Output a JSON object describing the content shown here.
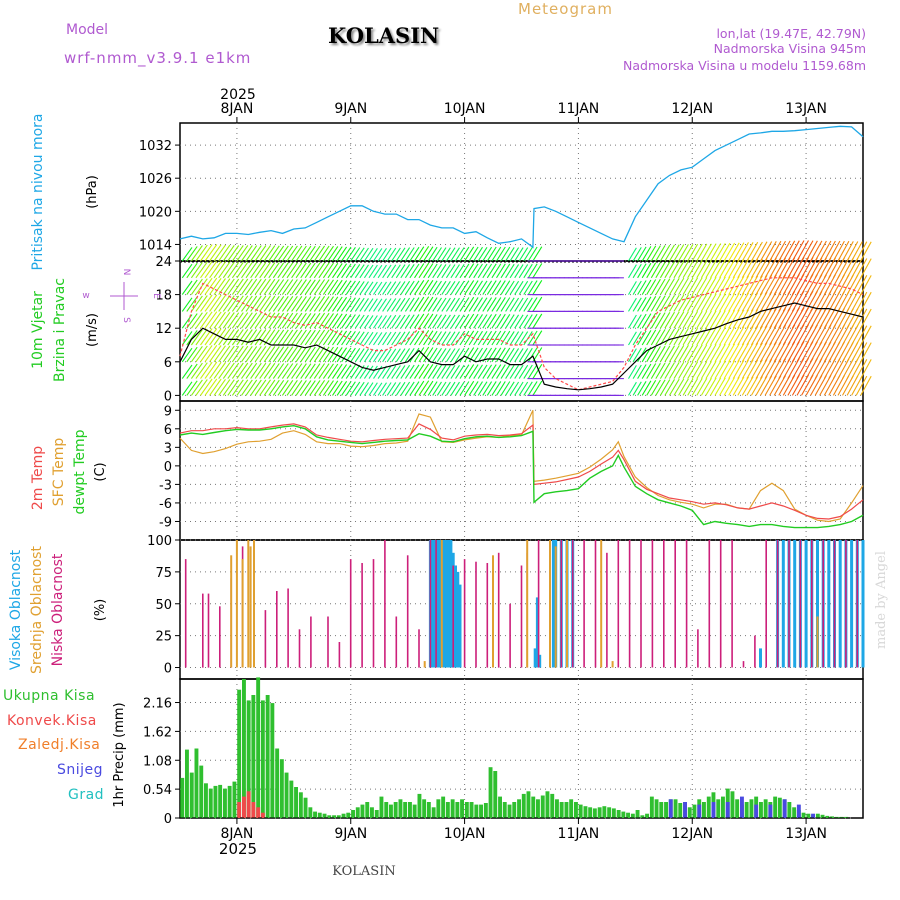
{
  "header": {
    "model_label": "Model",
    "model_name": "wrf-nmm_v3.9.1 e1km",
    "station": "KOLASIN",
    "title": "Meteogram",
    "coords": "lon,lat (19.47E, 42.79N)",
    "elevation": "Nadmorska Visina 945m",
    "model_elevation": "Nadmorska Visina u modelu 1159.68m",
    "footer_station": "KOLASIN",
    "watermark": "made by Angel"
  },
  "colors": {
    "pressure": "#1ea7e6",
    "wind_speed": "#000000",
    "gust": "#ff4a4a",
    "temp_2m": "#ef4a4a",
    "temp_sfc": "#e0a030",
    "dewpoint": "#22cc22",
    "cloud_high": "#1ea7e6",
    "cloud_mid": "#e0a030",
    "cloud_low": "#cc1f7a",
    "precip_total": "#2fbf2f",
    "precip_conv": "#ef4a4a",
    "precip_frz": "#f07f2a",
    "precip_snow": "#4a4ae0",
    "precip_graupel": "#22c0c0",
    "grid": "#777777"
  },
  "chart_data": [
    {
      "type": "line",
      "panel": "pressure",
      "ylabel_a": "Pritisak na nivou mora",
      "ylabel_b": "(hPa)",
      "y_ticks": [
        "1014",
        "1020",
        "1026",
        "1032"
      ],
      "ylim": [
        1011,
        1036
      ],
      "x_top_labels": [
        "8JAN",
        "9JAN",
        "10JAN",
        "11JAN",
        "12JAN",
        "13JAN"
      ],
      "x_top_year": "2025",
      "x_days": [
        7.5,
        7.6,
        7.7,
        7.8,
        7.9,
        8.0,
        8.1,
        8.2,
        8.3,
        8.4,
        8.5,
        8.6,
        8.7,
        8.8,
        8.9,
        9.0,
        9.1,
        9.2,
        9.3,
        9.4,
        9.5,
        9.6,
        9.7,
        9.8,
        9.9,
        10.0,
        10.1,
        10.2,
        10.3,
        10.4,
        10.5,
        10.6,
        10.61,
        10.7,
        10.8,
        10.9,
        11.0,
        11.1,
        11.2,
        11.3,
        11.4,
        11.5,
        11.6,
        11.7,
        11.8,
        11.9,
        12.0,
        12.1,
        12.2,
        12.3,
        12.4,
        12.5,
        12.6,
        12.7,
        12.8,
        12.9,
        13.0,
        13.1,
        13.2,
        13.3,
        13.4,
        13.5
      ],
      "values": [
        1015,
        1015.5,
        1015,
        1015.2,
        1016,
        1016,
        1015.8,
        1016.2,
        1016.5,
        1016,
        1016.8,
        1017,
        1018,
        1019,
        1020,
        1021,
        1021,
        1020,
        1019.5,
        1019.5,
        1018.5,
        1018.5,
        1017.5,
        1017,
        1017,
        1016,
        1016.3,
        1015.2,
        1014.2,
        1014.5,
        1015,
        1013.5,
        1020.5,
        1020.8,
        1020,
        1019,
        1018,
        1017,
        1016,
        1015,
        1014.5,
        1019,
        1022,
        1025,
        1026.5,
        1027.5,
        1028,
        1029.5,
        1031,
        1032,
        1033,
        1034,
        1034.2,
        1034.5,
        1034.5,
        1034.6,
        1034.8,
        1035,
        1035.2,
        1035.4,
        1035.3,
        1033.5
      ]
    },
    {
      "type": "line",
      "panel": "wind",
      "ylabel_a": "10m Vjetar",
      "ylabel_b": "Brzina i Pravac",
      "ylabel_c": "(m/s)",
      "compass": [
        "N",
        "w",
        "E",
        "S"
      ],
      "y_ticks": [
        "0",
        "6",
        "12",
        "18",
        "24"
      ],
      "ylim": [
        -1,
        24
      ],
      "x_days": [
        7.5,
        7.6,
        7.7,
        7.8,
        7.9,
        8.0,
        8.1,
        8.2,
        8.3,
        8.4,
        8.5,
        8.6,
        8.7,
        8.8,
        8.9,
        9.0,
        9.1,
        9.2,
        9.3,
        9.4,
        9.5,
        9.6,
        9.7,
        9.8,
        9.9,
        10.0,
        10.1,
        10.2,
        10.3,
        10.4,
        10.5,
        10.6,
        10.7,
        10.8,
        10.9,
        11.0,
        11.1,
        11.2,
        11.3,
        11.4,
        11.5,
        11.6,
        11.7,
        11.8,
        11.9,
        12.0,
        12.1,
        12.2,
        12.3,
        12.4,
        12.5,
        12.6,
        12.7,
        12.8,
        12.9,
        13.0,
        13.1,
        13.2,
        13.3,
        13.4,
        13.5
      ],
      "series": [
        {
          "name": "speed",
          "values": [
            6,
            10,
            12,
            11,
            10,
            10,
            9.5,
            10,
            9,
            9,
            9,
            8.5,
            9,
            8,
            7,
            6,
            5,
            4.5,
            5,
            5.5,
            6,
            8,
            6,
            5.5,
            5.5,
            7,
            6,
            6.5,
            6.5,
            5.5,
            5.5,
            7,
            2,
            1.5,
            1.2,
            1.0,
            1.2,
            1.5,
            2,
            4,
            6,
            8,
            9,
            10,
            10.5,
            11,
            11.5,
            12,
            12.8,
            13.5,
            14,
            15,
            15.5,
            16,
            16.5,
            16,
            15.5,
            15.5,
            15,
            14.5,
            14
          ]
        },
        {
          "name": "gust",
          "values": [
            7,
            15,
            20,
            19,
            18,
            17,
            16,
            15,
            14,
            14,
            13,
            12.5,
            13,
            12,
            11,
            10,
            9,
            8,
            8,
            9,
            10,
            12,
            10,
            9,
            9,
            11,
            10,
            10,
            10,
            9,
            9,
            11,
            5,
            3,
            2,
            1,
            1.5,
            2,
            2.5,
            5,
            9,
            12,
            15,
            16,
            17,
            17.5,
            18,
            18.5,
            19,
            19.5,
            20,
            20.5,
            21,
            21,
            21,
            20.5,
            20,
            20,
            19.5,
            19,
            18
          ]
        }
      ]
    },
    {
      "type": "line",
      "panel": "temperature",
      "ylabel_a": "2m Temp",
      "ylabel_b": "SFC Temp",
      "ylabel_c": "dewpt Temp",
      "ylabel_d": "(C)",
      "y_ticks": [
        "9",
        "6",
        "3",
        "0",
        "-3",
        "-6",
        "-9"
      ],
      "ylim": [
        -12,
        10.5
      ],
      "x_days": [
        7.5,
        7.6,
        7.7,
        7.8,
        7.9,
        8.0,
        8.1,
        8.2,
        8.3,
        8.4,
        8.5,
        8.6,
        8.7,
        8.8,
        8.9,
        9.0,
        9.1,
        9.2,
        9.3,
        9.4,
        9.5,
        9.6,
        9.7,
        9.8,
        9.9,
        10.0,
        10.1,
        10.2,
        10.3,
        10.4,
        10.5,
        10.6,
        10.61,
        10.7,
        10.8,
        10.9,
        11.0,
        11.1,
        11.2,
        11.3,
        11.35,
        11.4,
        11.5,
        11.6,
        11.7,
        11.8,
        11.9,
        12.0,
        12.1,
        12.2,
        12.3,
        12.4,
        12.5,
        12.6,
        12.7,
        12.8,
        12.9,
        13.0,
        13.1,
        13.2,
        13.3,
        13.4,
        13.5
      ],
      "series": [
        {
          "name": "2m Temp",
          "values": [
            5.3,
            5.7,
            5.7,
            6.0,
            6.0,
            6.2,
            6.0,
            6.0,
            6.3,
            6.6,
            6.8,
            6.3,
            5.0,
            4.6,
            4.3,
            4.0,
            3.9,
            4.1,
            4.3,
            4.4,
            4.5,
            6.8,
            5.9,
            4.5,
            4.2,
            4.8,
            5.0,
            5.1,
            4.9,
            5.0,
            5.2,
            6.6,
            -3.0,
            -2.8,
            -2.6,
            -2.2,
            -1.8,
            -0.9,
            0.3,
            1.4,
            2.5,
            1.0,
            -2.5,
            -3.8,
            -4.5,
            -5.2,
            -5.5,
            -5.8,
            -6.2,
            -6.0,
            -6.3,
            -6.8,
            -7.0,
            -6.5,
            -6.0,
            -6.5,
            -7.2,
            -8.0,
            -8.5,
            -8.6,
            -8.2,
            -7.0,
            -5.5
          ]
        },
        {
          "name": "SFC Temp",
          "values": [
            4.5,
            2.5,
            2.0,
            2.3,
            2.8,
            3.5,
            3.9,
            4.0,
            4.3,
            5.3,
            5.7,
            5.1,
            3.9,
            3.6,
            3.6,
            3.2,
            3.1,
            3.3,
            3.6,
            3.7,
            4.0,
            8.4,
            7.9,
            3.9,
            3.8,
            4.2,
            4.5,
            4.7,
            4.6,
            4.9,
            5.0,
            9.0,
            -2.5,
            -2.3,
            -2.0,
            -1.6,
            -1.2,
            -0.2,
            1.1,
            2.6,
            3.9,
            1.5,
            -1.8,
            -3.5,
            -4.8,
            -5.5,
            -5.9,
            -6.2,
            -6.8,
            -6.2,
            -6.2,
            -6.8,
            -7.0,
            -4.0,
            -2.8,
            -4.0,
            -7.0,
            -8.0,
            -8.8,
            -9.0,
            -8.6,
            -6.0,
            -3.2
          ]
        },
        {
          "name": "dewpt Temp",
          "values": [
            5.0,
            5.3,
            5.1,
            5.4,
            5.7,
            5.9,
            5.8,
            5.8,
            6.0,
            6.3,
            6.5,
            6.0,
            4.7,
            4.2,
            4.0,
            3.8,
            3.6,
            3.8,
            4.0,
            4.1,
            4.2,
            5.2,
            4.8,
            4.0,
            3.9,
            4.4,
            4.7,
            4.8,
            4.6,
            4.7,
            4.9,
            5.6,
            -5.9,
            -4.5,
            -4.2,
            -4.0,
            -3.7,
            -2.0,
            -0.9,
            0.0,
            1.7,
            -0.2,
            -3.3,
            -4.5,
            -5.5,
            -6.0,
            -6.5,
            -7.2,
            -9.5,
            -9.0,
            -9.3,
            -9.5,
            -9.8,
            -9.5,
            -9.5,
            -9.8,
            -10.0,
            -10.0,
            -10.0,
            -9.8,
            -9.5,
            -9.0,
            -8.0
          ]
        }
      ]
    },
    {
      "type": "bar",
      "panel": "cloud_cover",
      "ylabel_a": "Visoka Oblacnost",
      "ylabel_b": "Srednja Oblacnost",
      "ylabel_c": "Niska Oblacnost",
      "ylabel_d": "(%)",
      "y_ticks": [
        "0",
        "25",
        "50",
        "75",
        "100"
      ],
      "ylim": [
        0,
        100
      ],
      "series": [
        {
          "name": "Niska",
          "x_days": [
            7.55,
            7.7,
            7.75,
            7.85,
            7.95,
            8.05,
            8.15,
            8.25,
            8.35,
            8.45,
            8.55,
            8.65,
            8.8,
            8.9,
            9.0,
            9.1,
            9.2,
            9.3,
            9.4,
            9.5,
            9.6,
            9.7,
            9.75,
            9.9,
            10.0,
            10.1,
            10.2,
            10.3,
            10.4,
            10.5,
            10.55,
            10.65,
            10.75,
            10.85,
            10.95,
            11.05,
            11.15,
            11.25,
            11.35,
            11.45,
            11.55,
            11.65,
            11.75,
            11.85,
            11.95,
            12.05,
            12.15,
            12.25,
            12.35,
            12.45,
            12.55,
            12.65,
            12.75,
            12.85,
            12.95,
            13.05,
            13.15,
            13.25,
            13.35,
            13.45
          ],
          "values": [
            85,
            58,
            58,
            48,
            70,
            95,
            100,
            45,
            60,
            62,
            30,
            40,
            40,
            20,
            85,
            82,
            85,
            100,
            40,
            88,
            30,
            100,
            100,
            80,
            85,
            83,
            82,
            90,
            50,
            80,
            90,
            100,
            100,
            100,
            100,
            100,
            100,
            90,
            100,
            100,
            100,
            100,
            100,
            100,
            100,
            30,
            100,
            100,
            100,
            5,
            25,
            100,
            100,
            100,
            100,
            100,
            100,
            100,
            100,
            100
          ]
        },
        {
          "name": "Srednja",
          "x_days": [
            7.95,
            8.0,
            8.05,
            8.1,
            8.12,
            8.15,
            9.65,
            9.8,
            10.25,
            10.55,
            10.75,
            10.8,
            10.9,
            11.2,
            11.3,
            13.1
          ],
          "values": [
            88,
            100,
            85,
            100,
            95,
            100,
            5,
            100,
            88,
            100,
            100,
            95,
            100,
            100,
            5,
            40
          ]
        },
        {
          "name": "Visoka",
          "x_days": [
            9.7,
            9.72,
            9.74,
            9.76,
            9.78,
            9.8,
            9.82,
            9.84,
            9.86,
            9.88,
            9.9,
            9.92,
            9.94,
            9.96,
            10.62,
            10.64,
            10.66,
            10.8,
            10.85,
            10.9,
            10.95,
            10.78,
            12.6,
            12.75,
            12.8,
            12.85,
            12.9,
            12.95,
            13.0,
            13.05,
            13.1,
            13.15,
            13.2,
            13.25,
            13.3,
            13.35,
            13.4,
            13.45,
            13.5
          ],
          "values": [
            100,
            100,
            100,
            100,
            100,
            100,
            100,
            100,
            100,
            100,
            90,
            80,
            75,
            65,
            15,
            55,
            10,
            100,
            100,
            100,
            100,
            100,
            15,
            100,
            100,
            100,
            100,
            100,
            100,
            100,
            100,
            100,
            100,
            100,
            100,
            100,
            100,
            100,
            100
          ]
        }
      ]
    },
    {
      "type": "bar",
      "panel": "precipitation",
      "legend": [
        "Ukupna Kisa",
        "Konvek.Kisa",
        "Zaledj.Kisa",
        "Snijeg",
        "Grad"
      ],
      "ylabel": "1hr Precip (mm)",
      "y_ticks": [
        "0",
        "0.54",
        "1.08",
        "1.62",
        "2.16"
      ],
      "ylim": [
        0,
        2.6
      ],
      "x_bottom_labels": [
        "8JAN",
        "9JAN",
        "10JAN",
        "11JAN",
        "12JAN",
        "13JAN"
      ],
      "x_bottom_year": "2025",
      "hour_start_day": 7.5,
      "total": [
        0.75,
        1.28,
        0.85,
        1.3,
        0.98,
        0.65,
        0.55,
        0.6,
        0.62,
        0.55,
        0.6,
        0.68,
        2.4,
        2.6,
        2.2,
        2.3,
        2.63,
        2.2,
        2.3,
        2.15,
        1.3,
        1.1,
        0.85,
        0.7,
        0.58,
        0.48,
        0.38,
        0.2,
        0.12,
        0.1,
        0.08,
        0.05,
        0.05,
        0.05,
        0.08,
        0.1,
        0.15,
        0.2,
        0.25,
        0.3,
        0.2,
        0.15,
        0.4,
        0.3,
        0.25,
        0.3,
        0.35,
        0.3,
        0.3,
        0.25,
        0.45,
        0.35,
        0.3,
        0.2,
        0.35,
        0.4,
        0.3,
        0.35,
        0.3,
        0.35,
        0.3,
        0.3,
        0.25,
        0.25,
        0.28,
        0.95,
        0.88,
        0.4,
        0.3,
        0.25,
        0.3,
        0.35,
        0.45,
        0.5,
        0.4,
        0.35,
        0.42,
        0.5,
        0.45,
        0.35,
        0.3,
        0.3,
        0.35,
        0.3,
        0.25,
        0.22,
        0.2,
        0.18,
        0.2,
        0.22,
        0.2,
        0.18,
        0.15,
        0.12,
        0.1,
        0.08,
        0.15,
        0.05,
        0.08,
        0.4,
        0.35,
        0.3,
        0.3,
        0.35,
        0.35,
        0.28,
        0.3,
        0.2,
        0.25,
        0.35,
        0.3,
        0.4,
        0.48,
        0.35,
        0.4,
        0.55,
        0.5,
        0.35,
        0.25,
        0.3,
        0.35,
        0.4,
        0.3,
        0.35,
        0.3,
        0.4,
        0.38,
        0.35,
        0.3,
        0.2,
        0.15,
        0.1,
        0.08,
        0.05,
        0.08,
        0.06,
        0.04,
        0.03,
        0.02,
        0.02,
        0.02
      ],
      "convective": [
        0,
        0,
        0,
        0,
        0,
        0,
        0,
        0,
        0,
        0,
        0,
        0,
        0.3,
        0.4,
        0.5,
        0.3,
        0.2,
        0.1,
        0,
        0
      ],
      "snow_hours_from": 103,
      "snow": [
        0.35,
        0.3,
        0.3,
        0.3,
        0.25,
        0.2,
        0.25,
        0.2,
        0.35,
        0.3,
        0.38,
        0.4,
        0.3,
        0.35,
        0.45,
        0.4,
        0.3,
        0.2,
        0.25,
        0.3,
        0.35,
        0.25,
        0.3,
        0.25,
        0.35,
        0.33,
        0.3,
        0.25,
        0.18,
        0.1,
        0.08
      ]
    }
  ]
}
